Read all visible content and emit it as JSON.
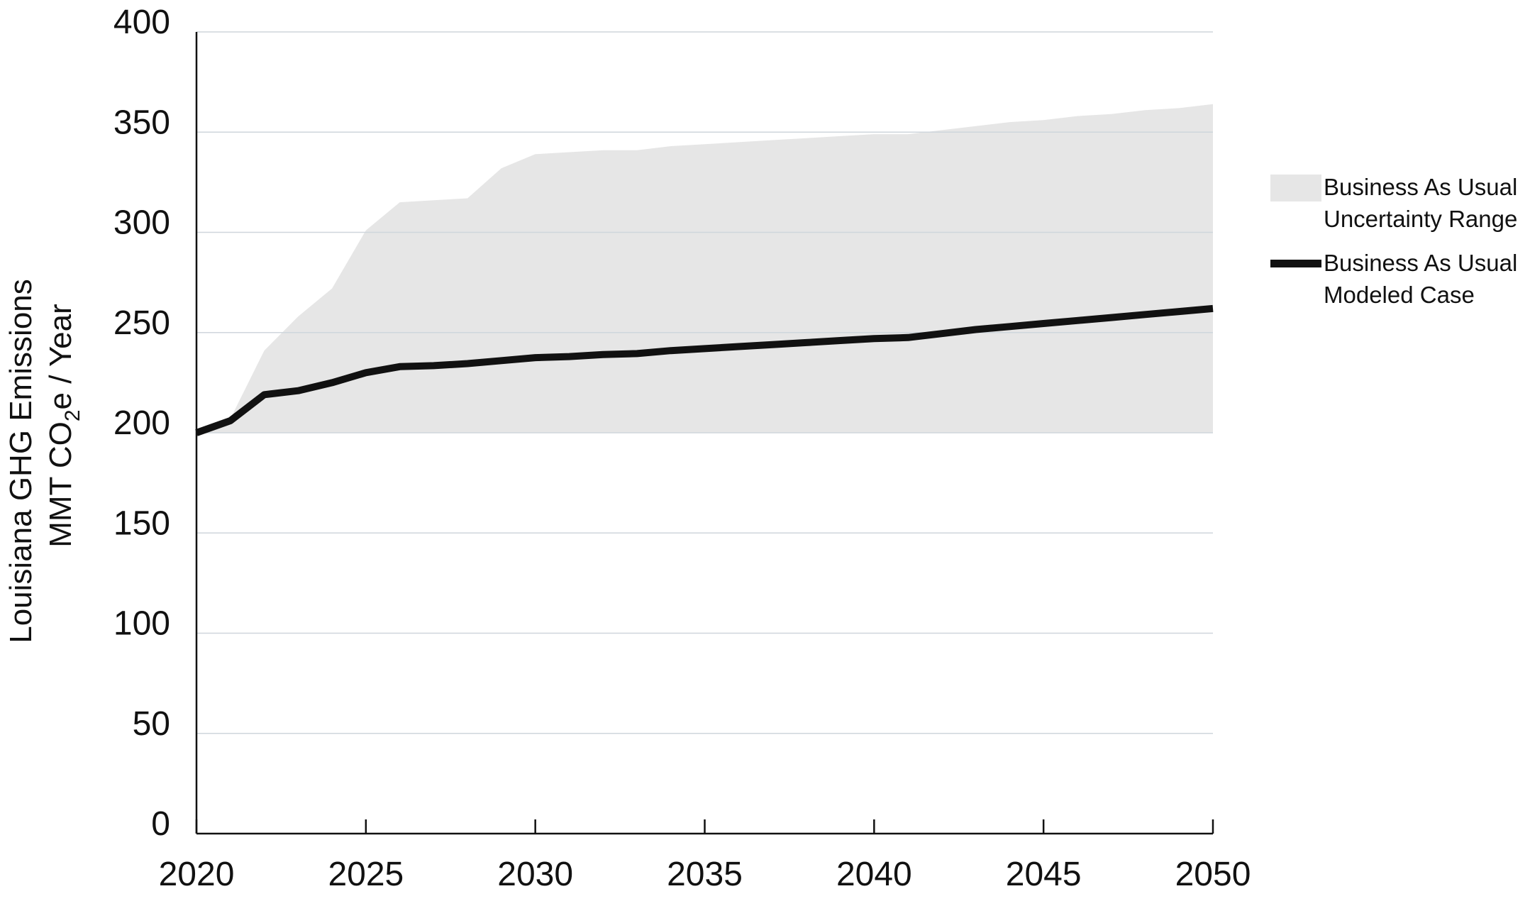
{
  "chart_data": {
    "type": "area",
    "title": "",
    "xlabel": "",
    "ylabel_line1": "Louisiana GHG Emissions",
    "ylabel_line2_prefix": "MMT CO",
    "ylabel_line2_sub": "2",
    "ylabel_line2_suffix": "e / Year",
    "xlim": [
      2020,
      2050
    ],
    "ylim": [
      0,
      400
    ],
    "x_ticks": [
      "2020",
      "2025",
      "2030",
      "2035",
      "2040",
      "2045",
      "2050"
    ],
    "y_ticks": [
      "0",
      "50",
      "100",
      "150",
      "200",
      "250",
      "300",
      "350",
      "400"
    ],
    "grid": "horizontal",
    "legend_position": "right",
    "colors": {
      "band": "#e6e6e6",
      "line": "#111111",
      "grid": "#cfd6dc",
      "axis": "#111111"
    },
    "series": [
      {
        "name": "Business As Usual Uncertainty Range",
        "legend_lines": [
          "Business As Usual",
          "Uncertainty Range"
        ],
        "kind": "band",
        "x": [
          2020,
          2021,
          2022,
          2023,
          2024,
          2025,
          2026,
          2027,
          2028,
          2029,
          2030,
          2031,
          2032,
          2033,
          2034,
          2035,
          2036,
          2037,
          2038,
          2039,
          2040,
          2041,
          2042,
          2043,
          2044,
          2045,
          2046,
          2047,
          2048,
          2049,
          2050
        ],
        "upper": [
          200,
          207,
          241,
          258,
          272,
          301,
          315,
          316,
          317,
          332,
          339,
          340,
          341,
          341,
          343,
          344,
          345,
          346,
          347,
          348,
          349,
          349,
          351,
          353,
          355,
          356,
          358,
          359,
          361,
          362,
          364
        ],
        "lower": [
          200,
          200,
          200,
          200,
          200,
          200,
          200,
          200,
          200,
          200,
          200,
          200,
          200,
          200,
          200,
          200,
          200,
          200,
          200,
          200,
          200,
          200,
          200,
          200,
          200,
          200,
          200,
          200,
          200,
          200,
          200
        ]
      },
      {
        "name": "Business As Usual Modeled Case",
        "legend_lines": [
          "Business As Usual",
          "Modeled Case"
        ],
        "kind": "line",
        "x": [
          2020,
          2021,
          2022,
          2023,
          2024,
          2025,
          2026,
          2027,
          2028,
          2029,
          2030,
          2031,
          2032,
          2033,
          2034,
          2035,
          2036,
          2037,
          2038,
          2039,
          2040,
          2041,
          2042,
          2043,
          2044,
          2045,
          2046,
          2047,
          2048,
          2049,
          2050
        ],
        "values": [
          200,
          206,
          219,
          221,
          225,
          230,
          233,
          233.5,
          234.5,
          236,
          237.5,
          238,
          239,
          239.5,
          241,
          242,
          243,
          244,
          245,
          246,
          247,
          247.5,
          249.5,
          251.5,
          253,
          254.5,
          256,
          257.5,
          259,
          260.5,
          262
        ]
      }
    ]
  }
}
